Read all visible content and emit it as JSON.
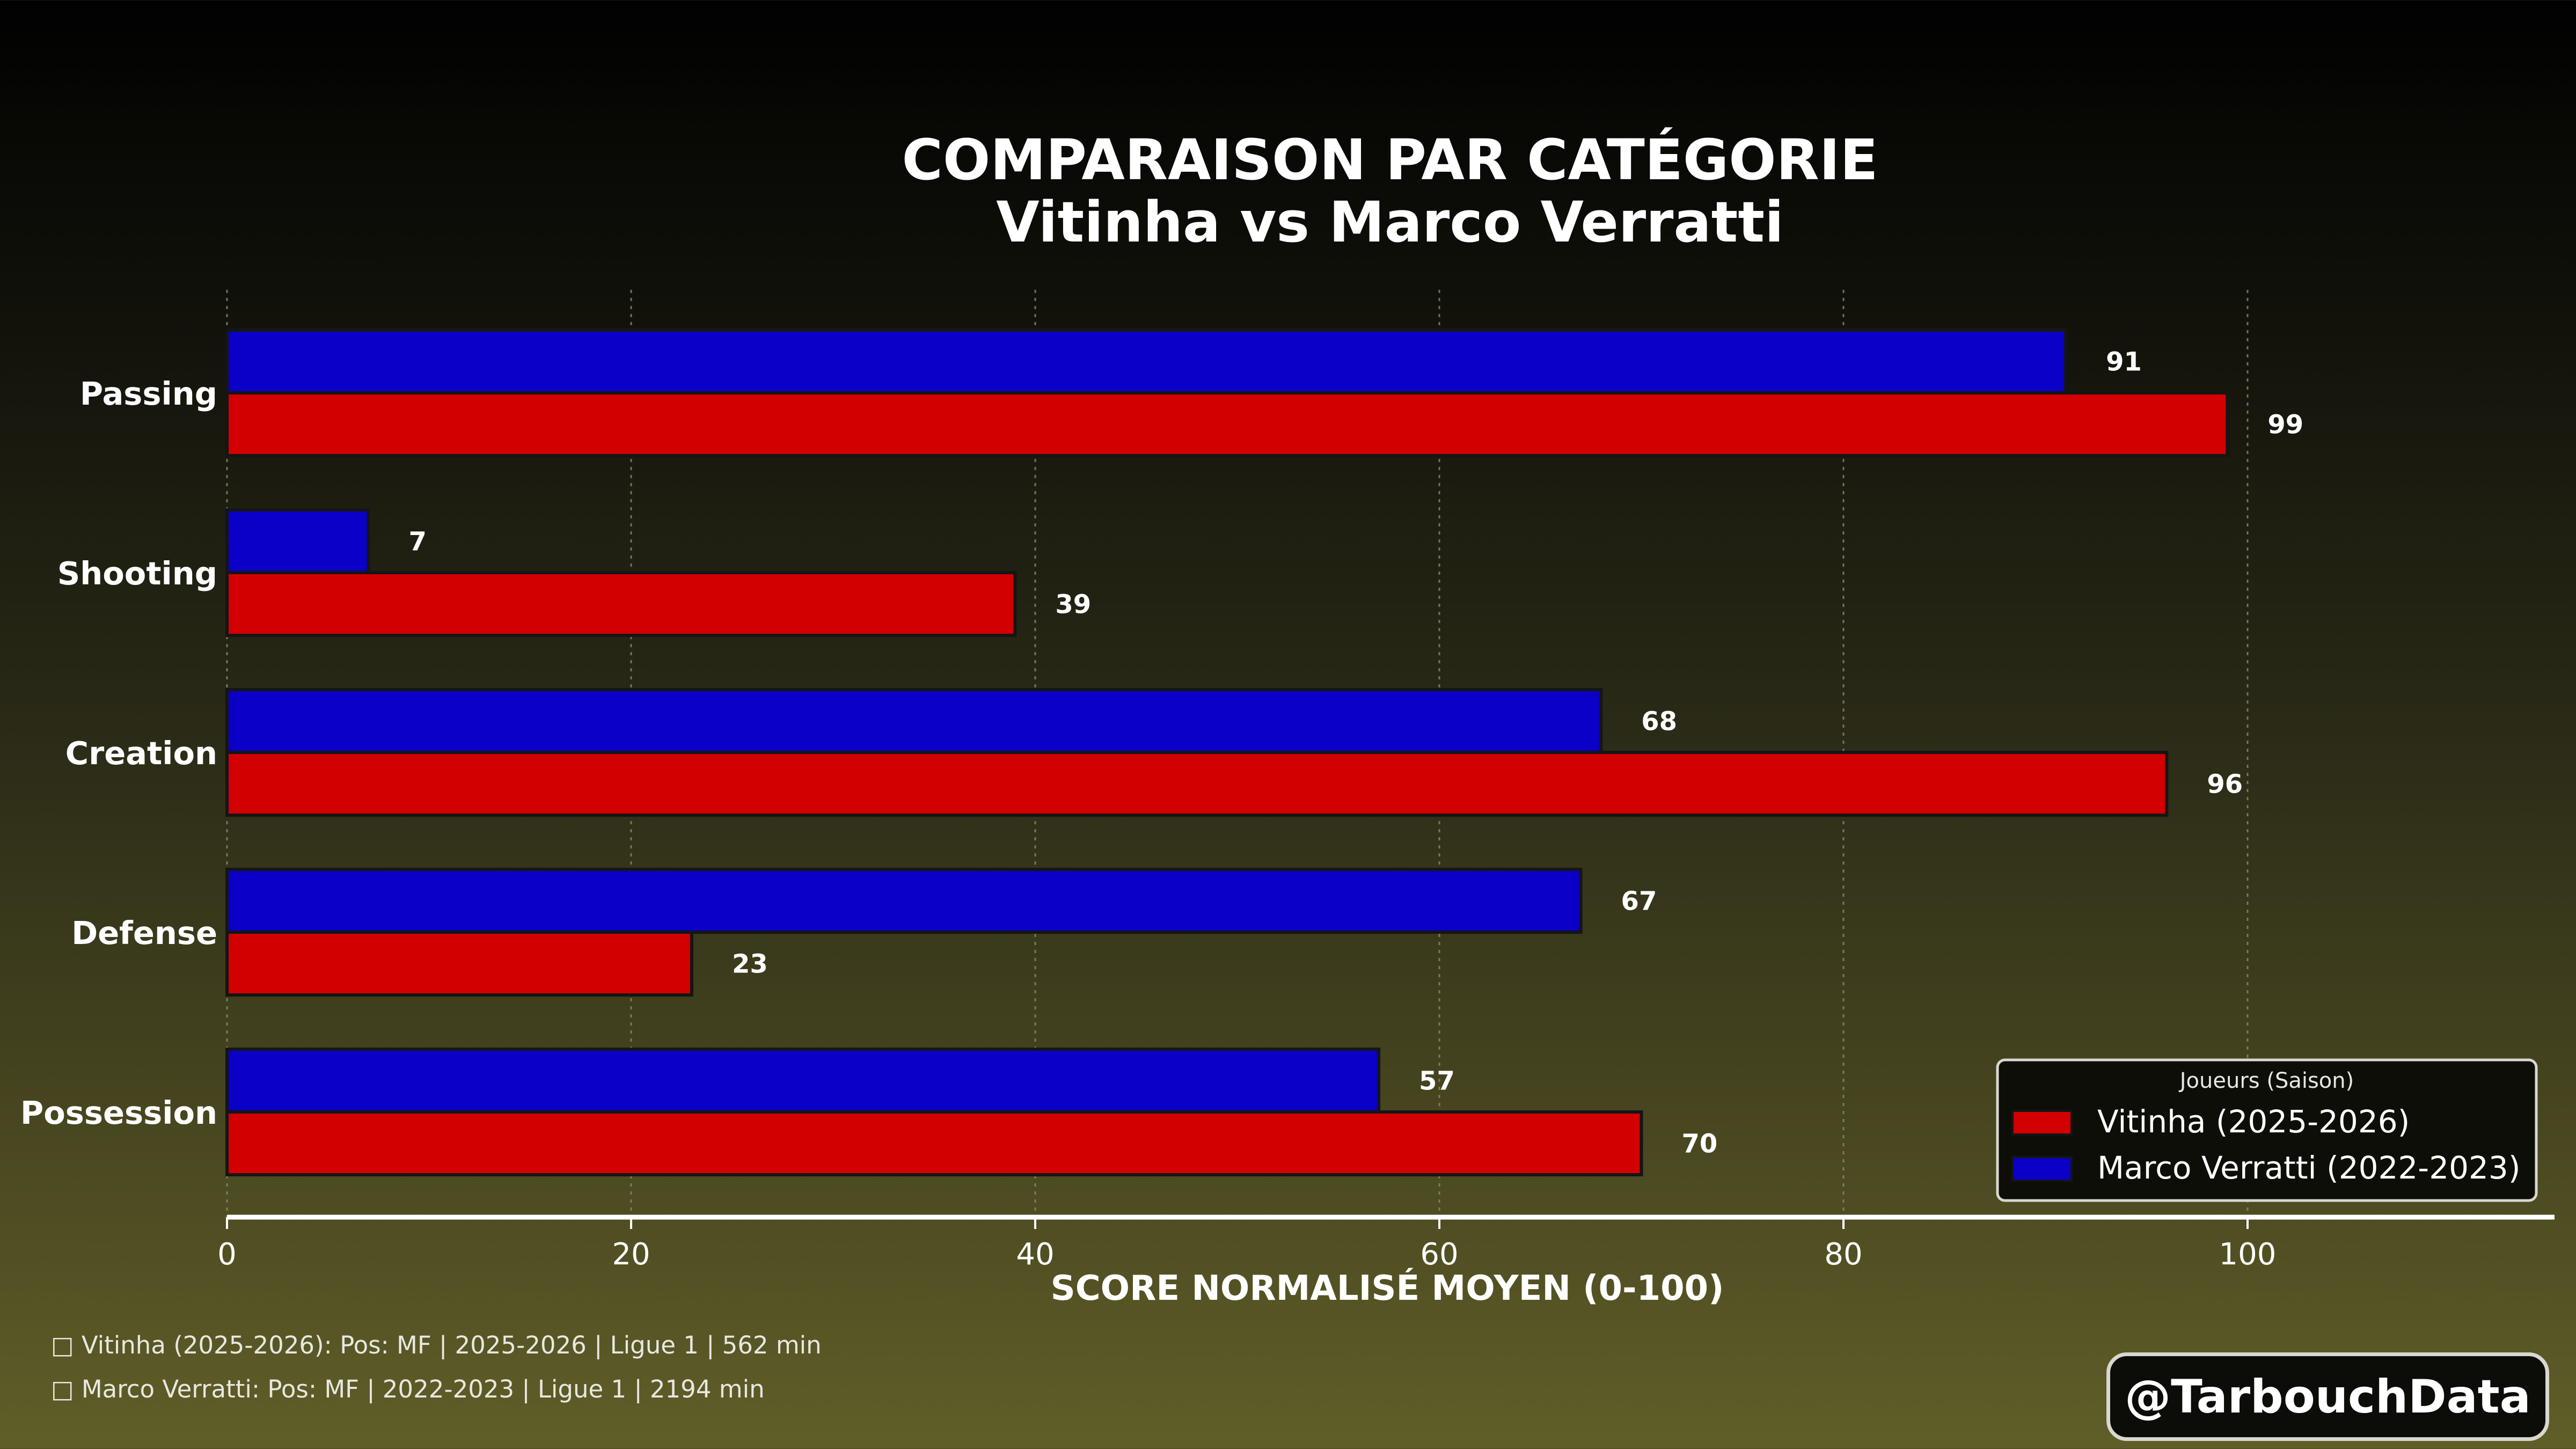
{
  "chart_data": {
    "type": "bar",
    "orientation": "horizontal",
    "title": "COMPARAISON PAR CATÉGORIE",
    "subtitle": "Vitinha vs Marco Verratti",
    "xlabel": "SCORE NORMALISÉ MOYEN (0-100)",
    "ylabel": "",
    "xlim": [
      0,
      115
    ],
    "xticks": [
      0,
      20,
      40,
      60,
      80,
      100
    ],
    "grid": true,
    "categories": [
      "Passing",
      "Shooting",
      "Creation",
      "Defense",
      "Possession"
    ],
    "series": [
      {
        "name": "Vitinha (2025-2026)",
        "color": "#d20000",
        "values": [
          99,
          39,
          96,
          23,
          70
        ],
        "labels": [
          "99",
          "39",
          "96",
          "23",
          "70"
        ]
      },
      {
        "name": "Marco Verratti (2022-2023)",
        "color": "#0a00c8",
        "values": [
          91,
          7,
          68,
          67,
          57
        ],
        "labels": [
          "91",
          "7",
          "68",
          "67",
          "57"
        ]
      }
    ],
    "legend": {
      "title": "Joueurs (Saison)",
      "position": "bottom-right"
    }
  },
  "footnotes": [
    "Vitinha (2025-2026): Pos: MF | 2025-2026 | Ligue 1 | 562 min",
    "Marco Verratti: Pos: MF | 2022-2023 | Ligue 1 | 2194 min"
  ],
  "footnote_icon": "□",
  "watermark": "@TarbouchData"
}
